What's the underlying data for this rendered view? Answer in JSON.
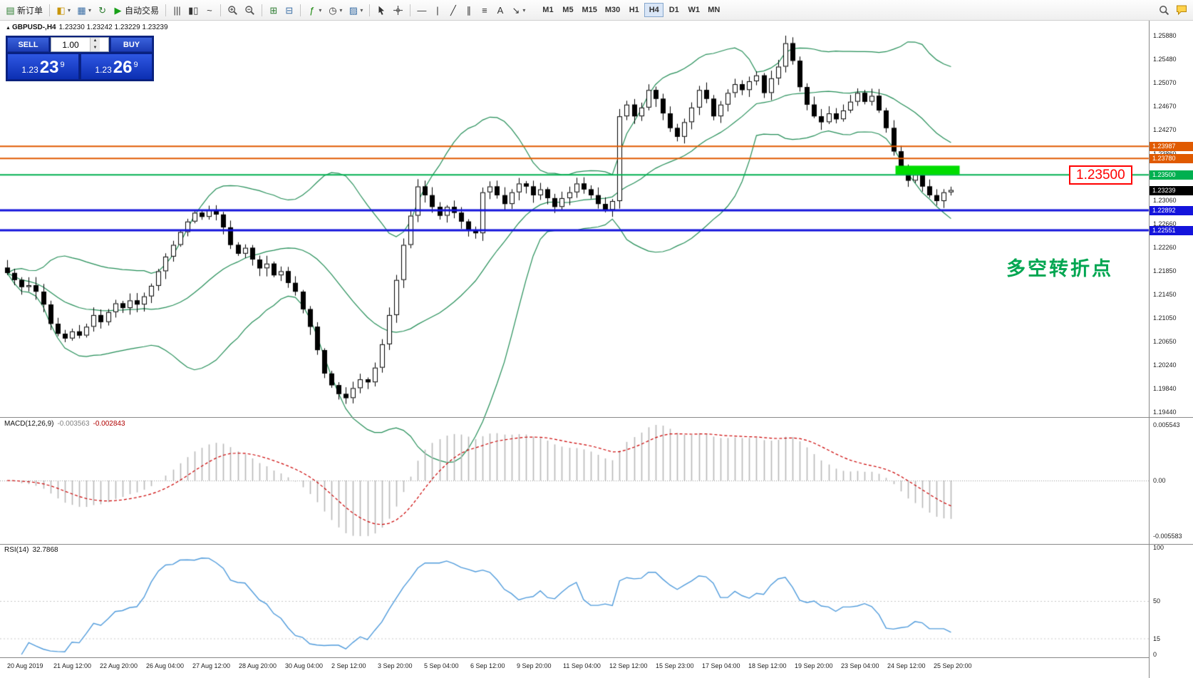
{
  "window": {
    "symbol_title": "GBPUSD-,H4",
    "ohlc_line": "1.23230 1.23242 1.23229 1.23239"
  },
  "toolbar": {
    "left_groups": [
      {
        "items": [
          {
            "name": "new-order",
            "glyph": "▤",
            "color": "#2e7d32",
            "label": "新订单"
          }
        ]
      },
      {
        "items": [
          {
            "name": "new-chart",
            "glyph": "◧",
            "color": "#c8950a",
            "caret": true
          },
          {
            "name": "profiles",
            "glyph": "▦",
            "color": "#3a6ea5",
            "caret": true
          },
          {
            "name": "refresh",
            "glyph": "↻",
            "color": "#2e7d32"
          },
          {
            "name": "autotrading",
            "glyph": "▶",
            "color": "#18a018",
            "label": "自动交易"
          }
        ]
      },
      {
        "items": [
          {
            "name": "bars-chart",
            "glyph": "|||",
            "color": "#333333"
          },
          {
            "name": "candlestick-chart",
            "glyph": "▮▯",
            "color": "#333333"
          },
          {
            "name": "line-chart",
            "glyph": "~",
            "color": "#333333"
          }
        ]
      },
      {
        "items": [
          {
            "name": "zoom-in",
            "icon": "zoom-in"
          },
          {
            "name": "zoom-out",
            "icon": "zoom-out"
          }
        ]
      },
      {
        "items": [
          {
            "name": "tile-windows",
            "glyph": "⊞",
            "color": "#2e7d32"
          },
          {
            "name": "arrange-windows",
            "glyph": "⊟",
            "color": "#3a6ea5"
          }
        ]
      },
      {
        "items": [
          {
            "name": "indicators",
            "glyph": "ƒ",
            "color": "#18870b",
            "caret": true
          },
          {
            "name": "periods",
            "glyph": "◷",
            "color": "#333333",
            "caret": true
          },
          {
            "name": "templates",
            "glyph": "▨",
            "color": "#3a6ea5",
            "caret": true
          }
        ]
      },
      {
        "items": [
          {
            "name": "cursor",
            "icon": "cursor"
          },
          {
            "name": "crosshair",
            "icon": "crosshair"
          }
        ]
      },
      {
        "items": [
          {
            "name": "horizontal-line-tool",
            "glyph": "—",
            "color": "#333333"
          },
          {
            "name": "vertical-line-tool",
            "glyph": "|",
            "color": "#333333"
          },
          {
            "name": "trendline-tool",
            "glyph": "╱",
            "color": "#333333"
          },
          {
            "name": "channel-tool",
            "glyph": "∥",
            "color": "#333333"
          },
          {
            "name": "fibonacci-tool",
            "glyph": "≡",
            "color": "#333333"
          },
          {
            "name": "text-tool",
            "glyph": "A",
            "color": "#333333"
          },
          {
            "name": "arrows-tool",
            "glyph": "↘",
            "color": "#333333",
            "caret": true
          }
        ]
      }
    ],
    "timeframes": [
      {
        "label": "M1"
      },
      {
        "label": "M5"
      },
      {
        "label": "M15"
      },
      {
        "label": "M30"
      },
      {
        "label": "H1"
      },
      {
        "label": "H4",
        "active": true
      },
      {
        "label": "D1"
      },
      {
        "label": "W1"
      },
      {
        "label": "MN"
      }
    ],
    "right_items": [
      {
        "name": "search",
        "icon": "search"
      },
      {
        "name": "chat",
        "icon": "chat"
      }
    ]
  },
  "trade_panel": {
    "sell_label": "SELL",
    "buy_label": "BUY",
    "volume": "1.00",
    "sell_price_main": "1.23",
    "sell_price_big": "23",
    "sell_price_sup": "9",
    "buy_price_main": "1.23",
    "buy_price_big": "26",
    "buy_price_sup": "9"
  },
  "annotations": {
    "turning_point_text": "多空转折点",
    "big_price_label": "1.23500"
  },
  "colors": {
    "hline_orange": "#e05a00",
    "hline_green": "#00b050",
    "hline_blue": "#1414dc",
    "highlight_green": "#00dd00",
    "annotation_green": "#00a651",
    "label_red": "#ff0000",
    "bollinger": "#238e57",
    "macd_hist": "#b8b8b8",
    "macd_signal": "#cc0000",
    "rsi_line": "#4f9bdc",
    "candle_up": "#ffffff",
    "candle_down": "#000000"
  },
  "chart_data": {
    "type": "candlestick",
    "symbol": "GBPUSD",
    "period": "H4",
    "price_scale": {
      "top_price": 1.2588,
      "bottom_price": 1.1944
    },
    "price_axis_ticks": [
      "1.25880",
      "1.25480",
      "1.25070",
      "1.24670",
      "1.24270",
      "1.23860",
      "1.23460",
      "1.23060",
      "1.22660",
      "1.22260",
      "1.21850",
      "1.21450",
      "1.21050",
      "1.20650",
      "1.20240",
      "1.19840",
      "1.19440"
    ],
    "time_axis_labels": [
      "20 Aug 2019",
      "21 Aug 12:00",
      "22 Aug 20:00",
      "26 Aug 04:00",
      "27 Aug 12:00",
      "28 Aug 20:00",
      "30 Aug 04:00",
      "2 Sep 12:00",
      "3 Sep 20:00",
      "5 Sep 04:00",
      "6 Sep 12:00",
      "9 Sep 20:00",
      "11 Sep 04:00",
      "12 Sep 12:00",
      "15 Sep 23:00",
      "17 Sep 04:00",
      "18 Sep 12:00",
      "19 Sep 20:00",
      "23 Sep 04:00",
      "24 Sep 12:00",
      "25 Sep 20:00"
    ],
    "closes": [
      1.2182,
      1.217,
      1.2158,
      1.2161,
      1.215,
      1.2128,
      1.2095,
      1.2078,
      1.207,
      1.2082,
      1.2075,
      1.209,
      1.211,
      1.2098,
      1.2115,
      1.213,
      1.2122,
      1.2135,
      1.2128,
      1.2142,
      1.216,
      1.2185,
      1.221,
      1.223,
      1.2252,
      1.227,
      1.2285,
      1.2278,
      1.229,
      1.2282,
      1.226,
      1.223,
      1.2215,
      1.2225,
      1.2205,
      1.219,
      1.2198,
      1.2178,
      1.2185,
      1.2165,
      1.215,
      1.212,
      1.209,
      1.205,
      1.201,
      1.199,
      1.1975,
      1.1968,
      1.1985,
      1.2,
      1.1995,
      1.202,
      1.206,
      1.211,
      1.217,
      1.223,
      1.228,
      1.233,
      1.2315,
      1.2295,
      1.228,
      1.2295,
      1.2285,
      1.227,
      1.2255,
      1.225,
      1.232,
      1.233,
      1.2315,
      1.23,
      1.232,
      1.2335,
      1.233,
      1.2315,
      1.2325,
      1.231,
      1.2295,
      1.231,
      1.232,
      1.2335,
      1.2325,
      1.2315,
      1.23,
      1.229,
      1.2305,
      1.245,
      1.247,
      1.245,
      1.2465,
      1.2495,
      1.248,
      1.2455,
      1.243,
      1.2415,
      1.244,
      1.2465,
      1.2495,
      1.248,
      1.245,
      1.247,
      1.249,
      1.2505,
      1.2495,
      1.251,
      1.252,
      1.249,
      1.2515,
      1.2535,
      1.2575,
      1.2545,
      1.25,
      1.247,
      1.245,
      1.244,
      1.2455,
      1.2445,
      1.246,
      1.2475,
      1.249,
      1.2475,
      1.2485,
      1.246,
      1.243,
      1.239,
      1.236,
      1.234,
      1.235,
      1.233,
      1.2315,
      1.2305,
      1.232,
      1.23239
    ],
    "wick_overrides": {
      "47": {
        "low": 1.1958
      },
      "108": {
        "high": 1.2588
      }
    },
    "hlines": [
      {
        "price": 1.23987,
        "tag": "1.23987",
        "color": "#e05a00",
        "width": 2
      },
      {
        "price": 1.2378,
        "tag": "1.23780",
        "color": "#e05a00",
        "width": 2
      },
      {
        "price": 1.235,
        "tag": "1.23500",
        "color": "#00b050",
        "width": 2
      },
      {
        "price": 1.22892,
        "tag": "1.22892",
        "color": "#1414dc",
        "width": 3
      },
      {
        "price": 1.22551,
        "tag": "1.22551",
        "color": "#1414dc",
        "width": 3
      }
    ],
    "current_price": {
      "value": 1.23239,
      "tag": "1.23239"
    },
    "highlight_zone": {
      "bar_from": 123.3,
      "bar_to": 132.2,
      "price_from": 1.23505,
      "price_to": 1.23655
    },
    "bollinger": {
      "period": 20,
      "deviation": 2
    },
    "macd": {
      "label": "MACD(12,26,9)",
      "value_main": "-0.003563",
      "value_signal": "-0.002843",
      "fast": 12,
      "slow": 26,
      "signal": 9,
      "axis_ticks": [
        "0.005543",
        "0.00",
        "-0.005583"
      ]
    },
    "rsi": {
      "label": "RSI(14)",
      "value": "32.7868",
      "period": 14,
      "axis_ticks": [
        {
          "v": 100,
          "label": "100"
        },
        {
          "v": 50,
          "label": "50"
        },
        {
          "v": 15,
          "label": "15"
        },
        {
          "v": 0,
          "label": "0"
        }
      ],
      "levels": [
        50,
        15
      ]
    }
  }
}
